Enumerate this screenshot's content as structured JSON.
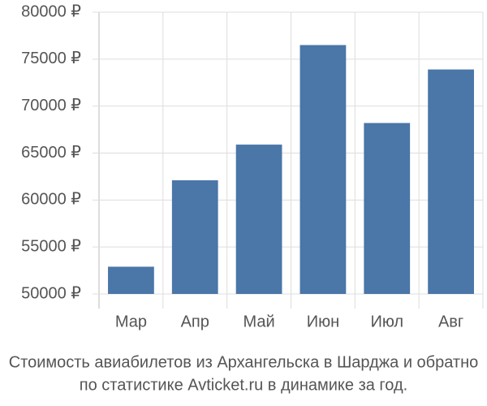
{
  "chart_data": {
    "type": "bar",
    "title_lines": [
      "Стоимость авиабилетов из Архангельска в Шарджа и обратно",
      "по статистике Avticket.ru в динамике за год."
    ],
    "categories": [
      "Мар",
      "Апр",
      "Май",
      "Июн",
      "Июл",
      "Авг"
    ],
    "values": [
      52900,
      62100,
      65900,
      76500,
      68200,
      73900
    ],
    "color": "#4a76a8",
    "ylim": [
      50000,
      80000
    ],
    "yticks": [
      {
        "value": 50000,
        "label": "50000 ₽"
      },
      {
        "value": 55000,
        "label": "55000 ₽"
      },
      {
        "value": 60000,
        "label": "60000 ₽"
      },
      {
        "value": 65000,
        "label": "65000 ₽"
      },
      {
        "value": 70000,
        "label": "70000 ₽"
      },
      {
        "value": 75000,
        "label": "75000 ₽"
      },
      {
        "value": 80000,
        "label": "80000 ₽"
      }
    ],
    "grid": true
  }
}
